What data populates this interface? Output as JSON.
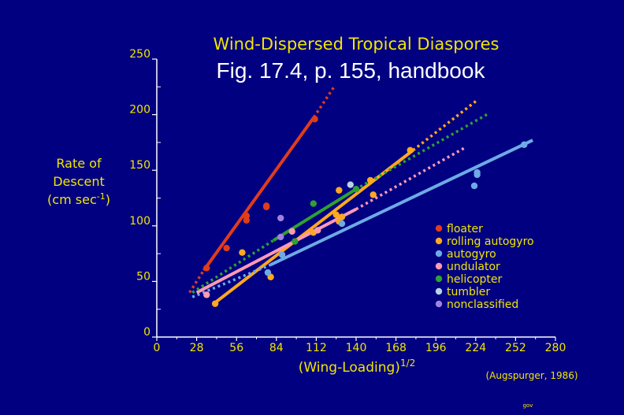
{
  "chart_data": {
    "type": "scatter",
    "title": "Wind-Dispersed Tropical Diaspores",
    "subtitle": "Fig. 17.4, p. 155, handbook",
    "ylabel_lines": [
      "Rate of",
      "Descent"
    ],
    "ylabel_units": "(cm sec",
    "ylabel_units_sup": "-1",
    "ylabel_units_close": ")",
    "xlabel": "(Wing-Loading)",
    "xlabel_sup": "1/2",
    "source": "(Augspurger, 1986)",
    "footer": "gov",
    "xlim": [
      0,
      280
    ],
    "ylim": [
      0,
      250
    ],
    "xticks": [
      "0",
      "28",
      "56",
      "84",
      "112",
      "140",
      "168",
      "196",
      "224",
      "252",
      "280"
    ],
    "yticks": [
      "0",
      "50",
      "100",
      "150",
      "200",
      "250"
    ],
    "legend_position": "right",
    "series": [
      {
        "name": "floater",
        "color": "#e03c1c",
        "points": [
          [
            35,
            62
          ],
          [
            49,
            80
          ],
          [
            63,
            105
          ],
          [
            63,
            109
          ],
          [
            77,
            117
          ],
          [
            77,
            118
          ],
          [
            111,
            196
          ]
        ],
        "fit_solid": [
          [
            33,
            60
          ],
          [
            110,
            197
          ]
        ],
        "fit_dotted": [
          [
            23,
            40
          ],
          [
            33,
            60
          ],
          [
            110,
            197
          ],
          [
            125,
            226
          ]
        ]
      },
      {
        "name": "rolling autogyro",
        "color": "#ffa820",
        "points": [
          [
            41,
            30
          ],
          [
            60,
            76
          ],
          [
            80,
            54
          ],
          [
            110,
            94
          ],
          [
            126,
            110
          ],
          [
            128,
            104
          ],
          [
            130,
            108
          ],
          [
            128,
            132
          ],
          [
            150,
            141
          ],
          [
            152,
            128
          ],
          [
            178,
            168
          ]
        ],
        "fit_solid": [
          [
            40,
            30
          ],
          [
            180,
            168
          ]
        ],
        "fit_dotted": [
          [
            180,
            168
          ],
          [
            225,
            213
          ]
        ]
      },
      {
        "name": "autogyro",
        "color": "#6eaae6",
        "points": [
          [
            78,
            58
          ],
          [
            88,
            74
          ],
          [
            130,
            102
          ],
          [
            225,
            148
          ],
          [
            225,
            146
          ],
          [
            223,
            136
          ],
          [
            258,
            173
          ]
        ],
        "fit_solid": [
          [
            80,
            65
          ],
          [
            264,
            177
          ]
        ],
        "fit_dotted": [
          [
            25,
            36
          ],
          [
            80,
            65
          ]
        ]
      },
      {
        "name": "undulator",
        "color": "#ff9ab4",
        "points": [
          [
            35,
            38
          ],
          [
            95,
            95
          ],
          [
            113,
            96
          ]
        ],
        "fit_solid": [
          [
            28,
            40
          ],
          [
            140,
            115
          ]
        ],
        "fit_dotted": [
          [
            140,
            115
          ],
          [
            216,
            170
          ]
        ]
      },
      {
        "name": "helicopter",
        "color": "#30a030",
        "points": [
          [
            97,
            86
          ],
          [
            110,
            120
          ],
          [
            140,
            133
          ]
        ],
        "fit_solid": [
          [
            82,
            87
          ],
          [
            140,
            133
          ]
        ],
        "fit_dotted": [
          [
            25,
            40
          ],
          [
            82,
            87
          ],
          [
            140,
            133
          ],
          [
            233,
            201
          ]
        ]
      },
      {
        "name": "tumbler",
        "color": "#b8d2e8",
        "points": [
          [
            136,
            137
          ]
        ],
        "fit_solid": [],
        "fit_dotted": []
      },
      {
        "name": "nonclassified",
        "color": "#a080e0",
        "points": [
          [
            87,
            107
          ],
          [
            87,
            90
          ]
        ],
        "fit_solid": [],
        "fit_dotted": []
      }
    ]
  }
}
